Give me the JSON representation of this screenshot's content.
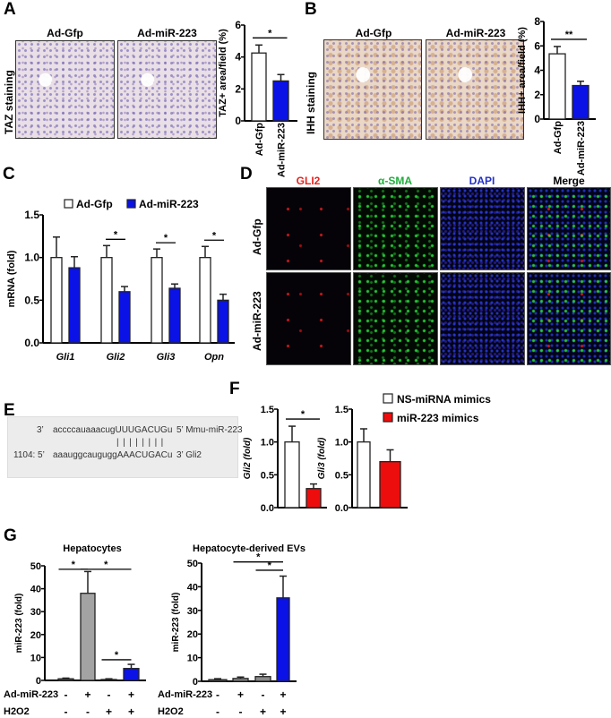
{
  "panels": {
    "A": {
      "letter": "A",
      "stain_label": "TAZ staining",
      "col_headers": [
        "Ad-Gfp",
        "Ad-miR-223"
      ]
    },
    "B": {
      "letter": "B",
      "stain_label": "IHH staining",
      "col_headers": [
        "Ad-Gfp",
        "Ad-miR-223"
      ]
    },
    "C": {
      "letter": "C"
    },
    "D": {
      "letter": "D",
      "col_headers": [
        "GLI2",
        "α-SMA",
        "DAPI",
        "Merge"
      ],
      "col_colors": [
        "#e8231f",
        "#1fae3c",
        "#2230c8",
        "#000000"
      ],
      "row_labels": [
        "Ad-Gfp",
        "Ad-miR-223"
      ]
    },
    "E": {
      "letter": "E",
      "row1": {
        "prefix": "3’",
        "sequence": "accccauaaacugUUUGACUGu",
        "suffix": "5’ Mmu-miR-223"
      },
      "pairing": "||||||||",
      "row2": {
        "prefix": "1104: 5’",
        "sequence": "aaauggcauguggAAACUGACu",
        "suffix": "3’ Gli2"
      }
    },
    "F": {
      "letter": "F"
    },
    "G": {
      "letter": "G",
      "row_labels": [
        "Ad-miR-223",
        "H2O2"
      ],
      "charts_rows": [
        [
          "-",
          "+",
          "-",
          "+"
        ],
        [
          "-",
          "-",
          "+",
          "+"
        ]
      ]
    }
  },
  "colors": {
    "white_bar": "#ffffff",
    "blue_bar": "#0a12e6",
    "red_bar": "#ee0d0d",
    "gray_bar": "#a3a3a3",
    "dark_gray_bar": "#6d6d6d"
  },
  "chart_data": [
    {
      "id": "A",
      "type": "bar",
      "ylabel": "TAZ+ area/field (%)",
      "ylim": [
        0,
        6
      ],
      "yticks": [
        0,
        2,
        4,
        6
      ],
      "categories": [
        "Ad-Gfp",
        "Ad-miR-223"
      ],
      "values": [
        4.25,
        2.5
      ],
      "errors": [
        0.5,
        0.4
      ],
      "colors": [
        "#ffffff",
        "#0a12e6"
      ],
      "significance": [
        {
          "from": 0,
          "to": 1,
          "label": "*"
        }
      ]
    },
    {
      "id": "B",
      "type": "bar",
      "ylabel": "IHH+ area/field (%)",
      "ylim": [
        0,
        8
      ],
      "yticks": [
        0,
        2,
        4,
        6,
        8
      ],
      "categories": [
        "Ad-Gfp",
        "Ad-miR-223"
      ],
      "values": [
        5.35,
        2.75
      ],
      "errors": [
        0.6,
        0.35
      ],
      "colors": [
        "#ffffff",
        "#0a12e6"
      ],
      "significance": [
        {
          "from": 0,
          "to": 1,
          "label": "**"
        }
      ]
    },
    {
      "id": "C",
      "type": "bar",
      "ylabel": "mRNA (fold)",
      "ylim": [
        0,
        1.5
      ],
      "yticks": [
        0.0,
        0.5,
        1.0,
        1.5
      ],
      "yticklabels": [
        "0.0",
        "0.5",
        "1.0",
        "1.5"
      ],
      "categories": [
        "Gli1",
        "Gli2",
        "Gli3",
        "Opn"
      ],
      "legend": "top",
      "series": [
        {
          "name": "Ad-Gfp",
          "color": "#ffffff",
          "values": [
            1.0,
            1.0,
            1.0,
            1.0
          ],
          "errors": [
            0.24,
            0.14,
            0.1,
            0.13
          ]
        },
        {
          "name": "Ad-miR-223",
          "color": "#0a12e6",
          "values": [
            0.88,
            0.6,
            0.64,
            0.5
          ],
          "errors": [
            0.13,
            0.06,
            0.05,
            0.07
          ]
        }
      ],
      "significance": [
        {
          "category": "Gli2",
          "label": "*"
        },
        {
          "category": "Gli3",
          "label": "*"
        },
        {
          "category": "Opn",
          "label": "*"
        }
      ]
    },
    {
      "id": "F-Gli2",
      "type": "bar",
      "ylabel": "Gli2 (fold)",
      "ylim": [
        0,
        1.5
      ],
      "yticks": [
        0.0,
        0.5,
        1.0,
        1.5
      ],
      "yticklabels": [
        "0.0",
        "0.5",
        "1.0",
        "1.5"
      ],
      "categories": [
        "NS-miRNA mimics",
        "miR-223 mimics"
      ],
      "values": [
        1.0,
        0.29
      ],
      "errors": [
        0.24,
        0.07
      ],
      "colors": [
        "#ffffff",
        "#ee0d0d"
      ],
      "significance": [
        {
          "from": 0,
          "to": 1,
          "label": "*"
        }
      ]
    },
    {
      "id": "F-Gli3",
      "type": "bar",
      "ylabel": "Gli3 (fold)",
      "ylim": [
        0,
        1.5
      ],
      "yticks": [
        0.0,
        0.5,
        1.0,
        1.5
      ],
      "yticklabels": [
        "0.0",
        "0.5",
        "1.0",
        "1.5"
      ],
      "categories": [
        "NS-miRNA mimics",
        "miR-223 mimics"
      ],
      "values": [
        1.0,
        0.7
      ],
      "errors": [
        0.2,
        0.18
      ],
      "colors": [
        "#ffffff",
        "#ee0d0d"
      ],
      "legend": "top-right",
      "legend_entries": [
        {
          "name": "NS-miRNA mimics",
          "color": "#ffffff"
        },
        {
          "name": "miR-223 mimics",
          "color": "#ee0d0d"
        }
      ]
    },
    {
      "id": "G-Hepatocytes",
      "type": "bar",
      "title": "Hepatocytes",
      "ylabel": "miR-223 (fold)",
      "ylim": [
        0,
        50
      ],
      "yticks": [
        0,
        10,
        20,
        30,
        40,
        50
      ],
      "categories": [
        "-/-",
        "+/-",
        "-/+",
        "+/+"
      ],
      "values": [
        0.7,
        38,
        0.4,
        5.2
      ],
      "errors": [
        0.3,
        9.5,
        0.3,
        1.8
      ],
      "colors": [
        "#6d6d6d",
        "#a3a3a3",
        "#6d6d6d",
        "#0a12e6"
      ],
      "significance": [
        {
          "from": 0,
          "to": 1,
          "label": "*"
        },
        {
          "from": 1,
          "to": 3,
          "label": "*"
        },
        {
          "from": 2,
          "to": 3,
          "label": "*"
        }
      ]
    },
    {
      "id": "G-EVs",
      "type": "bar",
      "title": "Hepatocyte-derived EVs",
      "ylabel": "miR-223 (fold)",
      "ylim": [
        0,
        50
      ],
      "yticks": [
        0,
        10,
        20,
        30,
        40,
        50
      ],
      "categories": [
        "-/-",
        "+/-",
        "-/+",
        "+/+"
      ],
      "values": [
        0.7,
        1.2,
        2.0,
        35.3
      ],
      "errors": [
        0.4,
        0.6,
        1.0,
        9.2
      ],
      "colors": [
        "#6d6d6d",
        "#8a8a8a",
        "#8a8a8a",
        "#0a12e6"
      ],
      "significance": [
        {
          "from": 1,
          "to": 3,
          "label": "*"
        },
        {
          "from": 2,
          "to": 3,
          "label": "*"
        }
      ]
    }
  ]
}
